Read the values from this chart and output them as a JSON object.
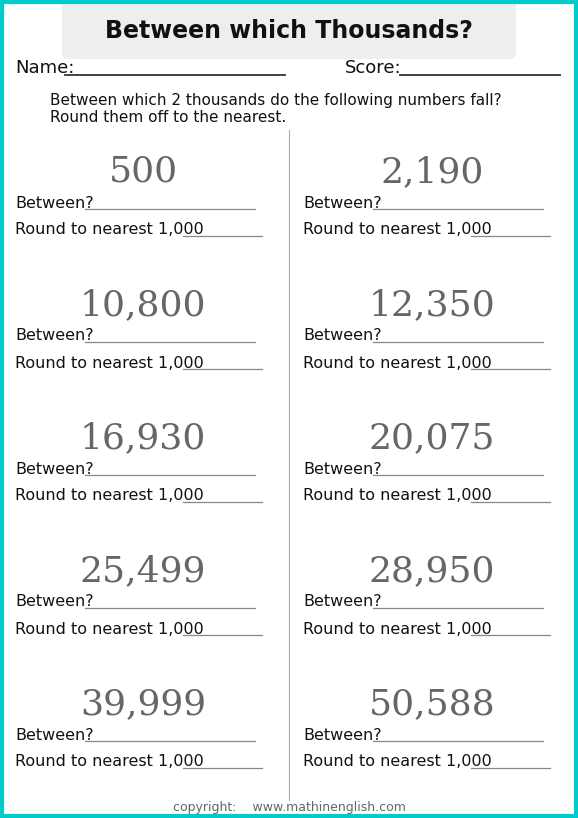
{
  "title": "Between which Thousands?",
  "name_label": "Name:",
  "score_label": "Score:",
  "instructions": [
    "Between which 2 thousands do the following numbers fall?",
    "Round them off to the nearest."
  ],
  "numbers": [
    [
      "500",
      "2,190"
    ],
    [
      "10,800",
      "12,350"
    ],
    [
      "16,930",
      "20,075"
    ],
    [
      "25,499",
      "28,950"
    ],
    [
      "39,999",
      "50,588"
    ]
  ],
  "between_label": "Between?",
  "round_label": "Round to nearest 1,000",
  "copyright": "copyright:    www.mathinenglish.com",
  "bg_color": "#ffffff",
  "border_color": "#00cccc",
  "title_box_color": "#eeeeee",
  "line_color": "#888888",
  "divider_color": "#aaaaaa",
  "title_fontsize": 17,
  "number_fontsize": 26,
  "label_fontsize": 11.5,
  "instruction_fontsize": 11,
  "name_fontsize": 13
}
